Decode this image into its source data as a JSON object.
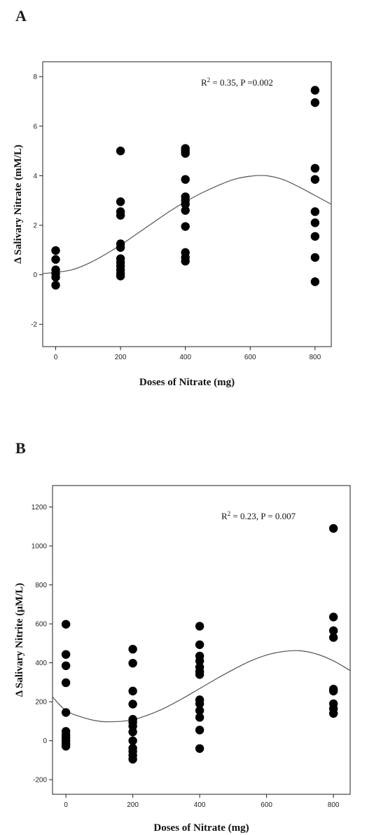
{
  "chart_data": [
    {
      "panel_label": "A",
      "type": "scatter",
      "xlabel": "Doses of Nitrate (mg)",
      "ylabel": "Δ Salivary Nitrate (mM/L)",
      "xlim": [
        -40,
        850
      ],
      "ylim": [
        -2.9,
        8.6
      ],
      "x_ticks": [
        0,
        200,
        400,
        600,
        800
      ],
      "y_ticks": [
        -2,
        0,
        2,
        4,
        6,
        8
      ],
      "annotation": {
        "r2_prefix": "R",
        "r2_sup": "2",
        "rest": " = 0.35, P =0.002"
      },
      "points": [
        {
          "x": 0,
          "y": 0.98
        },
        {
          "x": 0,
          "y": 0.62
        },
        {
          "x": 0,
          "y": 0.2
        },
        {
          "x": 0,
          "y": 0.05
        },
        {
          "x": 0,
          "y": -0.1
        },
        {
          "x": 0,
          "y": -0.42
        },
        {
          "x": 200,
          "y": 5.0
        },
        {
          "x": 200,
          "y": 2.95
        },
        {
          "x": 200,
          "y": 2.55
        },
        {
          "x": 200,
          "y": 2.4
        },
        {
          "x": 200,
          "y": 1.25
        },
        {
          "x": 200,
          "y": 1.1
        },
        {
          "x": 200,
          "y": 0.65
        },
        {
          "x": 200,
          "y": 0.5
        },
        {
          "x": 200,
          "y": 0.35
        },
        {
          "x": 200,
          "y": 0.2
        },
        {
          "x": 200,
          "y": 0.05
        },
        {
          "x": 200,
          "y": -0.05
        },
        {
          "x": 400,
          "y": 5.1
        },
        {
          "x": 400,
          "y": 5.0
        },
        {
          "x": 400,
          "y": 4.9
        },
        {
          "x": 400,
          "y": 3.85
        },
        {
          "x": 400,
          "y": 3.15
        },
        {
          "x": 400,
          "y": 3.0
        },
        {
          "x": 400,
          "y": 2.85
        },
        {
          "x": 400,
          "y": 2.6
        },
        {
          "x": 400,
          "y": 1.95
        },
        {
          "x": 400,
          "y": 0.9
        },
        {
          "x": 400,
          "y": 0.7
        },
        {
          "x": 400,
          "y": 0.55
        },
        {
          "x": 800,
          "y": 7.45
        },
        {
          "x": 800,
          "y": 6.95
        },
        {
          "x": 800,
          "y": 4.3
        },
        {
          "x": 800,
          "y": 3.85
        },
        {
          "x": 800,
          "y": 2.55
        },
        {
          "x": 800,
          "y": 2.1
        },
        {
          "x": 800,
          "y": 1.55
        },
        {
          "x": 800,
          "y": 0.7
        },
        {
          "x": 800,
          "y": -0.28
        }
      ],
      "fit_curve": {
        "x": [
          -40,
          0,
          50,
          100,
          150,
          200,
          250,
          300,
          350,
          400,
          450,
          500,
          550,
          600,
          650,
          700,
          750,
          800,
          850
        ],
        "y": [
          0.05,
          0.1,
          0.2,
          0.45,
          0.8,
          1.2,
          1.65,
          2.1,
          2.55,
          2.95,
          3.3,
          3.6,
          3.85,
          3.98,
          4.0,
          3.85,
          3.55,
          3.2,
          2.85
        ]
      }
    },
    {
      "panel_label": "B",
      "type": "scatter",
      "xlabel": "Doses of Nitrate (mg)",
      "ylabel": "Δ Salivary Nitrite (µM/L)",
      "xlim": [
        -40,
        850
      ],
      "ylim": [
        -275,
        1310
      ],
      "x_ticks": [
        0,
        200,
        400,
        600,
        800
      ],
      "y_ticks": [
        -200,
        0,
        200,
        400,
        600,
        800,
        1000,
        1200
      ],
      "annotation": {
        "r2_prefix": "R",
        "r2_sup": "2",
        "rest": " = 0.23, P = 0.007"
      },
      "points": [
        {
          "x": 0,
          "y": 598
        },
        {
          "x": 0,
          "y": 443
        },
        {
          "x": 0,
          "y": 385
        },
        {
          "x": 0,
          "y": 298
        },
        {
          "x": 0,
          "y": 145
        },
        {
          "x": 0,
          "y": 48
        },
        {
          "x": 0,
          "y": 30
        },
        {
          "x": 0,
          "y": 15
        },
        {
          "x": 0,
          "y": 0
        },
        {
          "x": 0,
          "y": -15
        },
        {
          "x": 0,
          "y": -28
        },
        {
          "x": 200,
          "y": 470
        },
        {
          "x": 200,
          "y": 398
        },
        {
          "x": 200,
          "y": 255
        },
        {
          "x": 200,
          "y": 188
        },
        {
          "x": 200,
          "y": 110
        },
        {
          "x": 200,
          "y": 95
        },
        {
          "x": 200,
          "y": 75
        },
        {
          "x": 200,
          "y": 45
        },
        {
          "x": 200,
          "y": 0
        },
        {
          "x": 200,
          "y": -38
        },
        {
          "x": 200,
          "y": -55
        },
        {
          "x": 200,
          "y": -75
        },
        {
          "x": 200,
          "y": -95
        },
        {
          "x": 400,
          "y": 588
        },
        {
          "x": 400,
          "y": 493
        },
        {
          "x": 400,
          "y": 435
        },
        {
          "x": 400,
          "y": 410
        },
        {
          "x": 400,
          "y": 378
        },
        {
          "x": 400,
          "y": 355
        },
        {
          "x": 400,
          "y": 340
        },
        {
          "x": 400,
          "y": 210
        },
        {
          "x": 400,
          "y": 190
        },
        {
          "x": 400,
          "y": 155
        },
        {
          "x": 400,
          "y": 120
        },
        {
          "x": 400,
          "y": 55
        },
        {
          "x": 400,
          "y": -40
        },
        {
          "x": 800,
          "y": 1090
        },
        {
          "x": 800,
          "y": 635
        },
        {
          "x": 800,
          "y": 565
        },
        {
          "x": 800,
          "y": 530
        },
        {
          "x": 800,
          "y": 265
        },
        {
          "x": 800,
          "y": 255
        },
        {
          "x": 800,
          "y": 190
        },
        {
          "x": 800,
          "y": 165
        },
        {
          "x": 800,
          "y": 140
        }
      ],
      "fit_curve": {
        "x": [
          -40,
          0,
          50,
          100,
          150,
          200,
          250,
          300,
          350,
          400,
          450,
          500,
          550,
          600,
          650,
          700,
          750,
          800,
          850
        ],
        "y": [
          225,
          155,
          120,
          100,
          98,
          108,
          135,
          172,
          218,
          268,
          318,
          365,
          408,
          440,
          458,
          462,
          445,
          410,
          360
        ]
      }
    }
  ]
}
